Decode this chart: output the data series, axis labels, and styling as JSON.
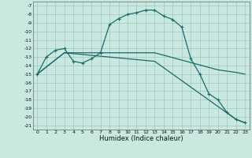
{
  "xlabel": "Humidex (Indice chaleur)",
  "background_color": "#c8e8e0",
  "grid_color": "#a0c8c0",
  "line_color": "#1a6b6b",
  "xlim": [
    -0.5,
    23.5
  ],
  "ylim": [
    -21.5,
    -6.5
  ],
  "yticks": [
    -7,
    -8,
    -9,
    -10,
    -11,
    -12,
    -13,
    -14,
    -15,
    -16,
    -17,
    -18,
    -19,
    -20,
    -21
  ],
  "xticks": [
    0,
    1,
    2,
    3,
    4,
    5,
    6,
    7,
    8,
    9,
    10,
    11,
    12,
    13,
    14,
    15,
    16,
    17,
    18,
    19,
    20,
    21,
    22,
    23
  ],
  "series_main": {
    "x": [
      0,
      1,
      2,
      3,
      4,
      5,
      6,
      7,
      8,
      9,
      10,
      11,
      12,
      13,
      14,
      15,
      16,
      17,
      18,
      19,
      20,
      21,
      22,
      23
    ],
    "y": [
      -15.0,
      -13.0,
      -12.2,
      -12.0,
      -13.5,
      -13.7,
      -13.2,
      -12.5,
      -9.2,
      -8.5,
      -8.0,
      -7.8,
      -7.5,
      -7.5,
      -8.2,
      -8.6,
      -9.5,
      -13.2,
      -15.0,
      -17.3,
      -18.0,
      -19.5,
      -20.3,
      -20.7
    ]
  },
  "series_flat": {
    "x": [
      0,
      3,
      13,
      20,
      22,
      23
    ],
    "y": [
      -15.0,
      -12.5,
      -12.5,
      -14.5,
      -14.8,
      -15.0
    ]
  },
  "series_diagonal": {
    "x": [
      0,
      3,
      13,
      22,
      23
    ],
    "y": [
      -15.0,
      -12.5,
      -13.5,
      -20.3,
      -20.7
    ]
  }
}
